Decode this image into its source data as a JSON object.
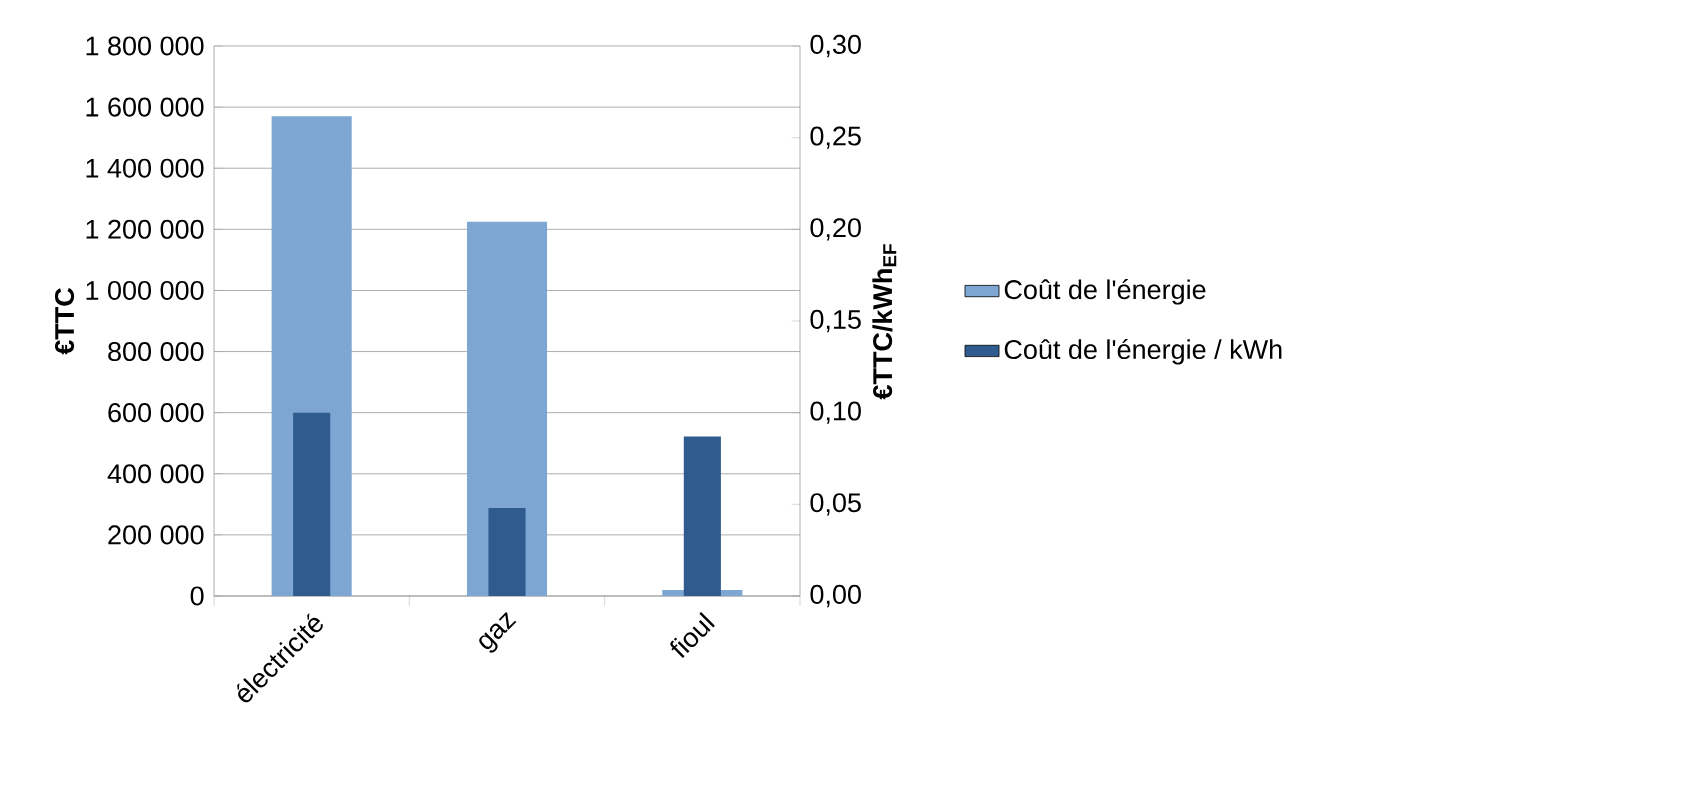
{
  "chart_data": {
    "type": "bar",
    "categories": [
      "électricité",
      "gaz",
      "fioul"
    ],
    "ylabel": "€TTC",
    "y2label": "€TTC/kWh$_{EF}$",
    "series": [
      {
        "name": "Coût de l'énergie",
        "color": "#7ea6d3",
        "values": [
          1570000,
          1225000,
          20000
        ]
      },
      {
        "name": "Coût de l'énergie / kWh",
        "color": "#2f5b8f",
        "values": [
          0.1,
          0.048,
          0.087
        ],
        "axis": "y2"
      }
    ],
    "ylim": [
      0,
      1800000
    ],
    "yticks": [
      {
        "value": 0,
        "label": "0"
      },
      {
        "value": 200000,
        "label": "200 000"
      },
      {
        "value": 400000,
        "label": "400 000"
      },
      {
        "value": 600000,
        "label": "600 000"
      },
      {
        "value": 800000,
        "label": "800 000"
      },
      {
        "value": 1000000,
        "label": "1 000 000"
      },
      {
        "value": 1200000,
        "label": "1 200 000"
      },
      {
        "value": 1400000,
        "label": "1 400 000"
      },
      {
        "value": 1600000,
        "label": "1 600 000"
      },
      {
        "value": 1800000,
        "label": "1 800 000"
      }
    ],
    "y2lim": [
      0,
      0.3
    ],
    "y2ticks": [
      {
        "value": 0,
        "label": "0,00"
      },
      {
        "value": 0.05,
        "label": "0,05"
      },
      {
        "value": 0.1,
        "label": "0,10"
      },
      {
        "value": 0.15,
        "label": "0,15"
      },
      {
        "value": 0.2,
        "label": "0,20"
      },
      {
        "value": 0.25,
        "label": "0,25"
      },
      {
        "value": 0.3,
        "label": "0,30"
      }
    ],
    "grid": "y",
    "legend": "right"
  }
}
